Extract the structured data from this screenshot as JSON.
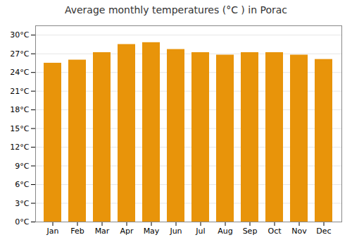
{
  "chart_data": {
    "type": "bar",
    "title": "Average monthly temperatures (°C ) in Porac",
    "categories": [
      "Jan",
      "Feb",
      "Mar",
      "Apr",
      "May",
      "Jun",
      "Jul",
      "Aug",
      "Sep",
      "Oct",
      "Nov",
      "Dec"
    ],
    "values": [
      25.5,
      26.0,
      27.2,
      28.5,
      28.8,
      27.7,
      27.2,
      26.8,
      27.2,
      27.2,
      26.8,
      26.1
    ],
    "color": "#E8940A",
    "ylim": [
      0,
      31.5
    ],
    "yticks": [
      {
        "value": 0,
        "label": "0°C"
      },
      {
        "value": 3,
        "label": "3°C"
      },
      {
        "value": 6,
        "label": "6°C"
      },
      {
        "value": 9,
        "label": "9°C"
      },
      {
        "value": 12,
        "label": "12°C"
      },
      {
        "value": 15,
        "label": "15°C"
      },
      {
        "value": 18,
        "label": "18°C"
      },
      {
        "value": 21,
        "label": "21°C"
      },
      {
        "value": 24,
        "label": "24°C"
      },
      {
        "value": 27,
        "label": "27°C"
      },
      {
        "value": 30,
        "label": "30°C"
      }
    ],
    "grid": true
  }
}
